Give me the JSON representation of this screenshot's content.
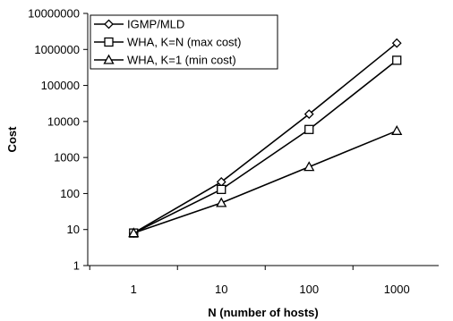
{
  "chart_data": {
    "type": "line",
    "xlabel": "N (number of hosts)",
    "ylabel": "Cost",
    "x_scale": "log",
    "y_scale": "log",
    "x": [
      1,
      10,
      100,
      1000
    ],
    "x_tick_labels": [
      "1",
      "10",
      "100",
      "1000"
    ],
    "xlim": [
      0.3,
      3000
    ],
    "y_tick_labels": [
      "1",
      "10",
      "100",
      "1000",
      "10000",
      "100000",
      "1000000",
      "10000000"
    ],
    "ylim": [
      1,
      10000000
    ],
    "grid": false,
    "legend_position": "top-left",
    "series": [
      {
        "name": "IGMP/MLD",
        "marker": "diamond",
        "values": [
          8,
          210,
          16000,
          1500000
        ]
      },
      {
        "name": "WHA, K=N (max cost)",
        "marker": "square",
        "values": [
          8,
          130,
          6000,
          500000
        ]
      },
      {
        "name": "WHA, K=1 (min cost)",
        "marker": "triangle",
        "values": [
          8,
          55,
          550,
          5500
        ]
      }
    ]
  }
}
